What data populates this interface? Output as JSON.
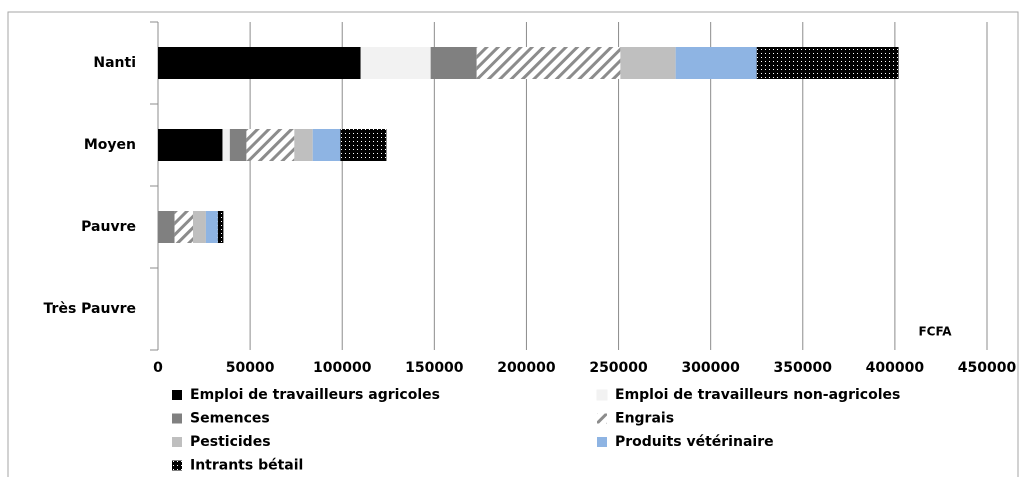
{
  "chart_data": {
    "type": "stacked-bar-horizontal",
    "categories": [
      "Nanti",
      "Moyen",
      "Pauvre",
      "Très Pauvre"
    ],
    "series": [
      {
        "name": "Emploi de travailleurs agricoles",
        "color": "#000000",
        "pattern": "solid",
        "values": [
          110000,
          35000,
          0,
          0
        ]
      },
      {
        "name": "Emploi de travailleurs non-agricoles",
        "color": "#f2f2f2",
        "pattern": "solid",
        "values": [
          38000,
          4000,
          0,
          0
        ]
      },
      {
        "name": "Semences",
        "color": "#808080",
        "pattern": "solid",
        "values": [
          25000,
          9000,
          9000,
          0
        ]
      },
      {
        "name": "Engrais",
        "color": "#8c8c8c",
        "pattern": "diagonal",
        "values": [
          78000,
          26000,
          10000,
          0
        ]
      },
      {
        "name": "Pesticides",
        "color": "#bfbfbf",
        "pattern": "solid",
        "values": [
          30000,
          10000,
          7000,
          0
        ]
      },
      {
        "name": "Produits vétérinaire",
        "color": "#8eb4e3",
        "pattern": "solid",
        "values": [
          44000,
          15000,
          6500,
          0
        ]
      },
      {
        "name": "Intrants bétail",
        "color": "#000000",
        "pattern": "dots",
        "values": [
          77000,
          25000,
          3000,
          0
        ]
      }
    ],
    "xlim": [
      0,
      450000
    ],
    "xticks": [
      0,
      50000,
      100000,
      150000,
      200000,
      250000,
      300000,
      350000,
      400000,
      450000
    ],
    "grid": true,
    "annotation": "FCFA",
    "legend": "bottom"
  }
}
